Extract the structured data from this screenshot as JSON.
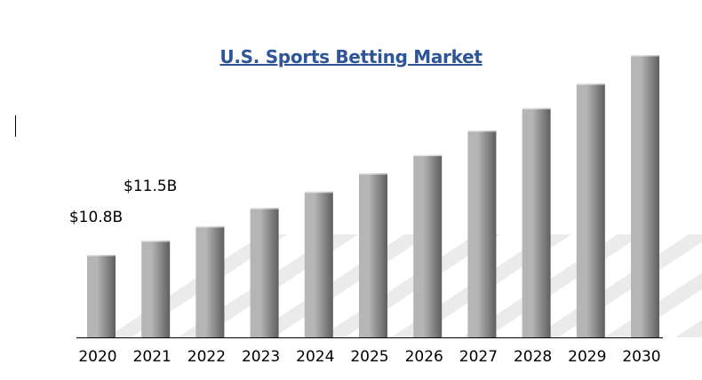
{
  "chart_data": {
    "type": "bar",
    "title": "U.S. Sports Betting Market",
    "xlabel": "",
    "ylabel": "",
    "categories": [
      "2020",
      "2021",
      "2022",
      "2023",
      "2024",
      "2025",
      "2026",
      "2027",
      "2028",
      "2029",
      "2030"
    ],
    "values": [
      10.8,
      11.5,
      12.2,
      13.1,
      13.9,
      14.8,
      15.7,
      16.9,
      18.0,
      19.2,
      20.6
    ],
    "data_labels": [
      {
        "index": 0,
        "text": "$10.8B"
      },
      {
        "index": 1,
        "text": "$11.5B"
      }
    ],
    "ylim": [
      0,
      21
    ],
    "grid": false,
    "legend": "none",
    "colors": {
      "bar_light": "#b5b5b5",
      "bar_dark": "#5e5e5e",
      "title": "#2f5597",
      "stripes": "#ebebeb",
      "axis": "#000000"
    }
  }
}
